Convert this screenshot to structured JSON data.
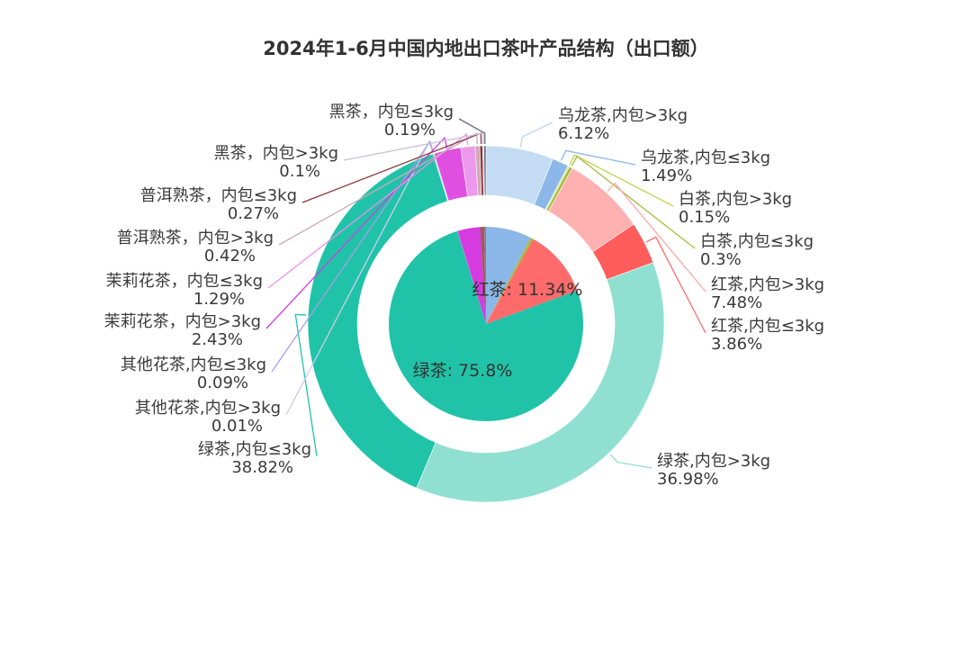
{
  "chart_data": {
    "type": "pie",
    "title": "2024年1-6月中国内地出口茶叶产品结构（出口额）",
    "inner_series": [
      {
        "name": "乌龙茶",
        "value": 7.61,
        "color": "#8bb8e8"
      },
      {
        "name": "白茶",
        "value": 0.45,
        "color": "#a8bd3a"
      },
      {
        "name": "红茶",
        "value": 11.34,
        "color": "#ff6b6b",
        "label": "红茶: 11.34%"
      },
      {
        "name": "绿茶",
        "value": 75.8,
        "color": "#20c3a8",
        "label": "绿茶: 75.8%"
      },
      {
        "name": "其他花茶",
        "value": 0.1,
        "color": "#9b8fe0"
      },
      {
        "name": "茉莉花茶",
        "value": 3.72,
        "color": "#d63be0"
      },
      {
        "name": "普洱熟茶",
        "value": 0.69,
        "color": "#a05a5a"
      },
      {
        "name": "黑茶",
        "value": 0.29,
        "color": "#8a7aa0"
      }
    ],
    "outer_series": [
      {
        "name": "乌龙茶,内包>3kg",
        "value": 6.12,
        "pct": "6.12%",
        "color": "#c3dcf4",
        "line": "#bcd6f0"
      },
      {
        "name": "乌龙茶,内包≤3kg",
        "value": 1.49,
        "pct": "1.49%",
        "color": "#8bb8e8",
        "line": "#8bb8e8"
      },
      {
        "name": "白茶,内包>3kg",
        "value": 0.15,
        "pct": "0.15%",
        "color": "#d6e08a",
        "line": "#c5d35a"
      },
      {
        "name": "白茶,内包≤3kg",
        "value": 0.3,
        "pct": "0.3%",
        "color": "#a8bd3a",
        "line": "#a8bd3a"
      },
      {
        "name": "红茶,内包>3kg",
        "value": 7.48,
        "pct": "7.48%",
        "color": "#ffb0b0",
        "line": "#ffa8a8"
      },
      {
        "name": "红茶,内包≤3kg",
        "value": 3.86,
        "pct": "3.86%",
        "color": "#ff5c5c",
        "line": "#ff6b6b"
      },
      {
        "name": "绿茶,内包>3kg",
        "value": 36.98,
        "pct": "36.98%",
        "color": "#90e0d2",
        "line": "#90e0d2"
      },
      {
        "name": "绿茶,内包≤3kg",
        "value": 38.82,
        "pct": "38.82%",
        "color": "#20c3a8",
        "line": "#20c3a8"
      },
      {
        "name": "其他花茶,内包>3kg",
        "value": 0.01,
        "pct": "0.01%",
        "color": "#d6ccf0",
        "line": "#d0c8ee"
      },
      {
        "name": "其他花茶,内包≤3kg",
        "value": 0.09,
        "pct": "0.09%",
        "color": "#9b8fe0",
        "line": "#a89ee6"
      },
      {
        "name": "茉莉花茶，内包>3kg",
        "value": 2.43,
        "pct": "2.43%",
        "color": "#e050e0",
        "line": "#d63be0"
      },
      {
        "name": "茉莉花茶，内包≤3kg",
        "value": 1.29,
        "pct": "1.29%",
        "color": "#ec98ec",
        "line": "#ec90ec"
      },
      {
        "name": "普洱熟茶，内包>3kg",
        "value": 0.42,
        "pct": "0.42%",
        "color": "#d4a8b8",
        "line": "#ccaab8"
      },
      {
        "name": "普洱熟茶，内包≤3kg",
        "value": 0.27,
        "pct": "0.27%",
        "color": "#8a3a3a",
        "line": "#8a3a3a"
      },
      {
        "name": "黑茶，内包>3kg",
        "value": 0.1,
        "pct": "0.1%",
        "color": "#c8c0dc",
        "line": "#c8c0dc"
      },
      {
        "name": "黑茶，内包≤3kg",
        "value": 0.19,
        "pct": "0.19%",
        "color": "#6a6a80",
        "line": "#6a6a80"
      }
    ]
  }
}
